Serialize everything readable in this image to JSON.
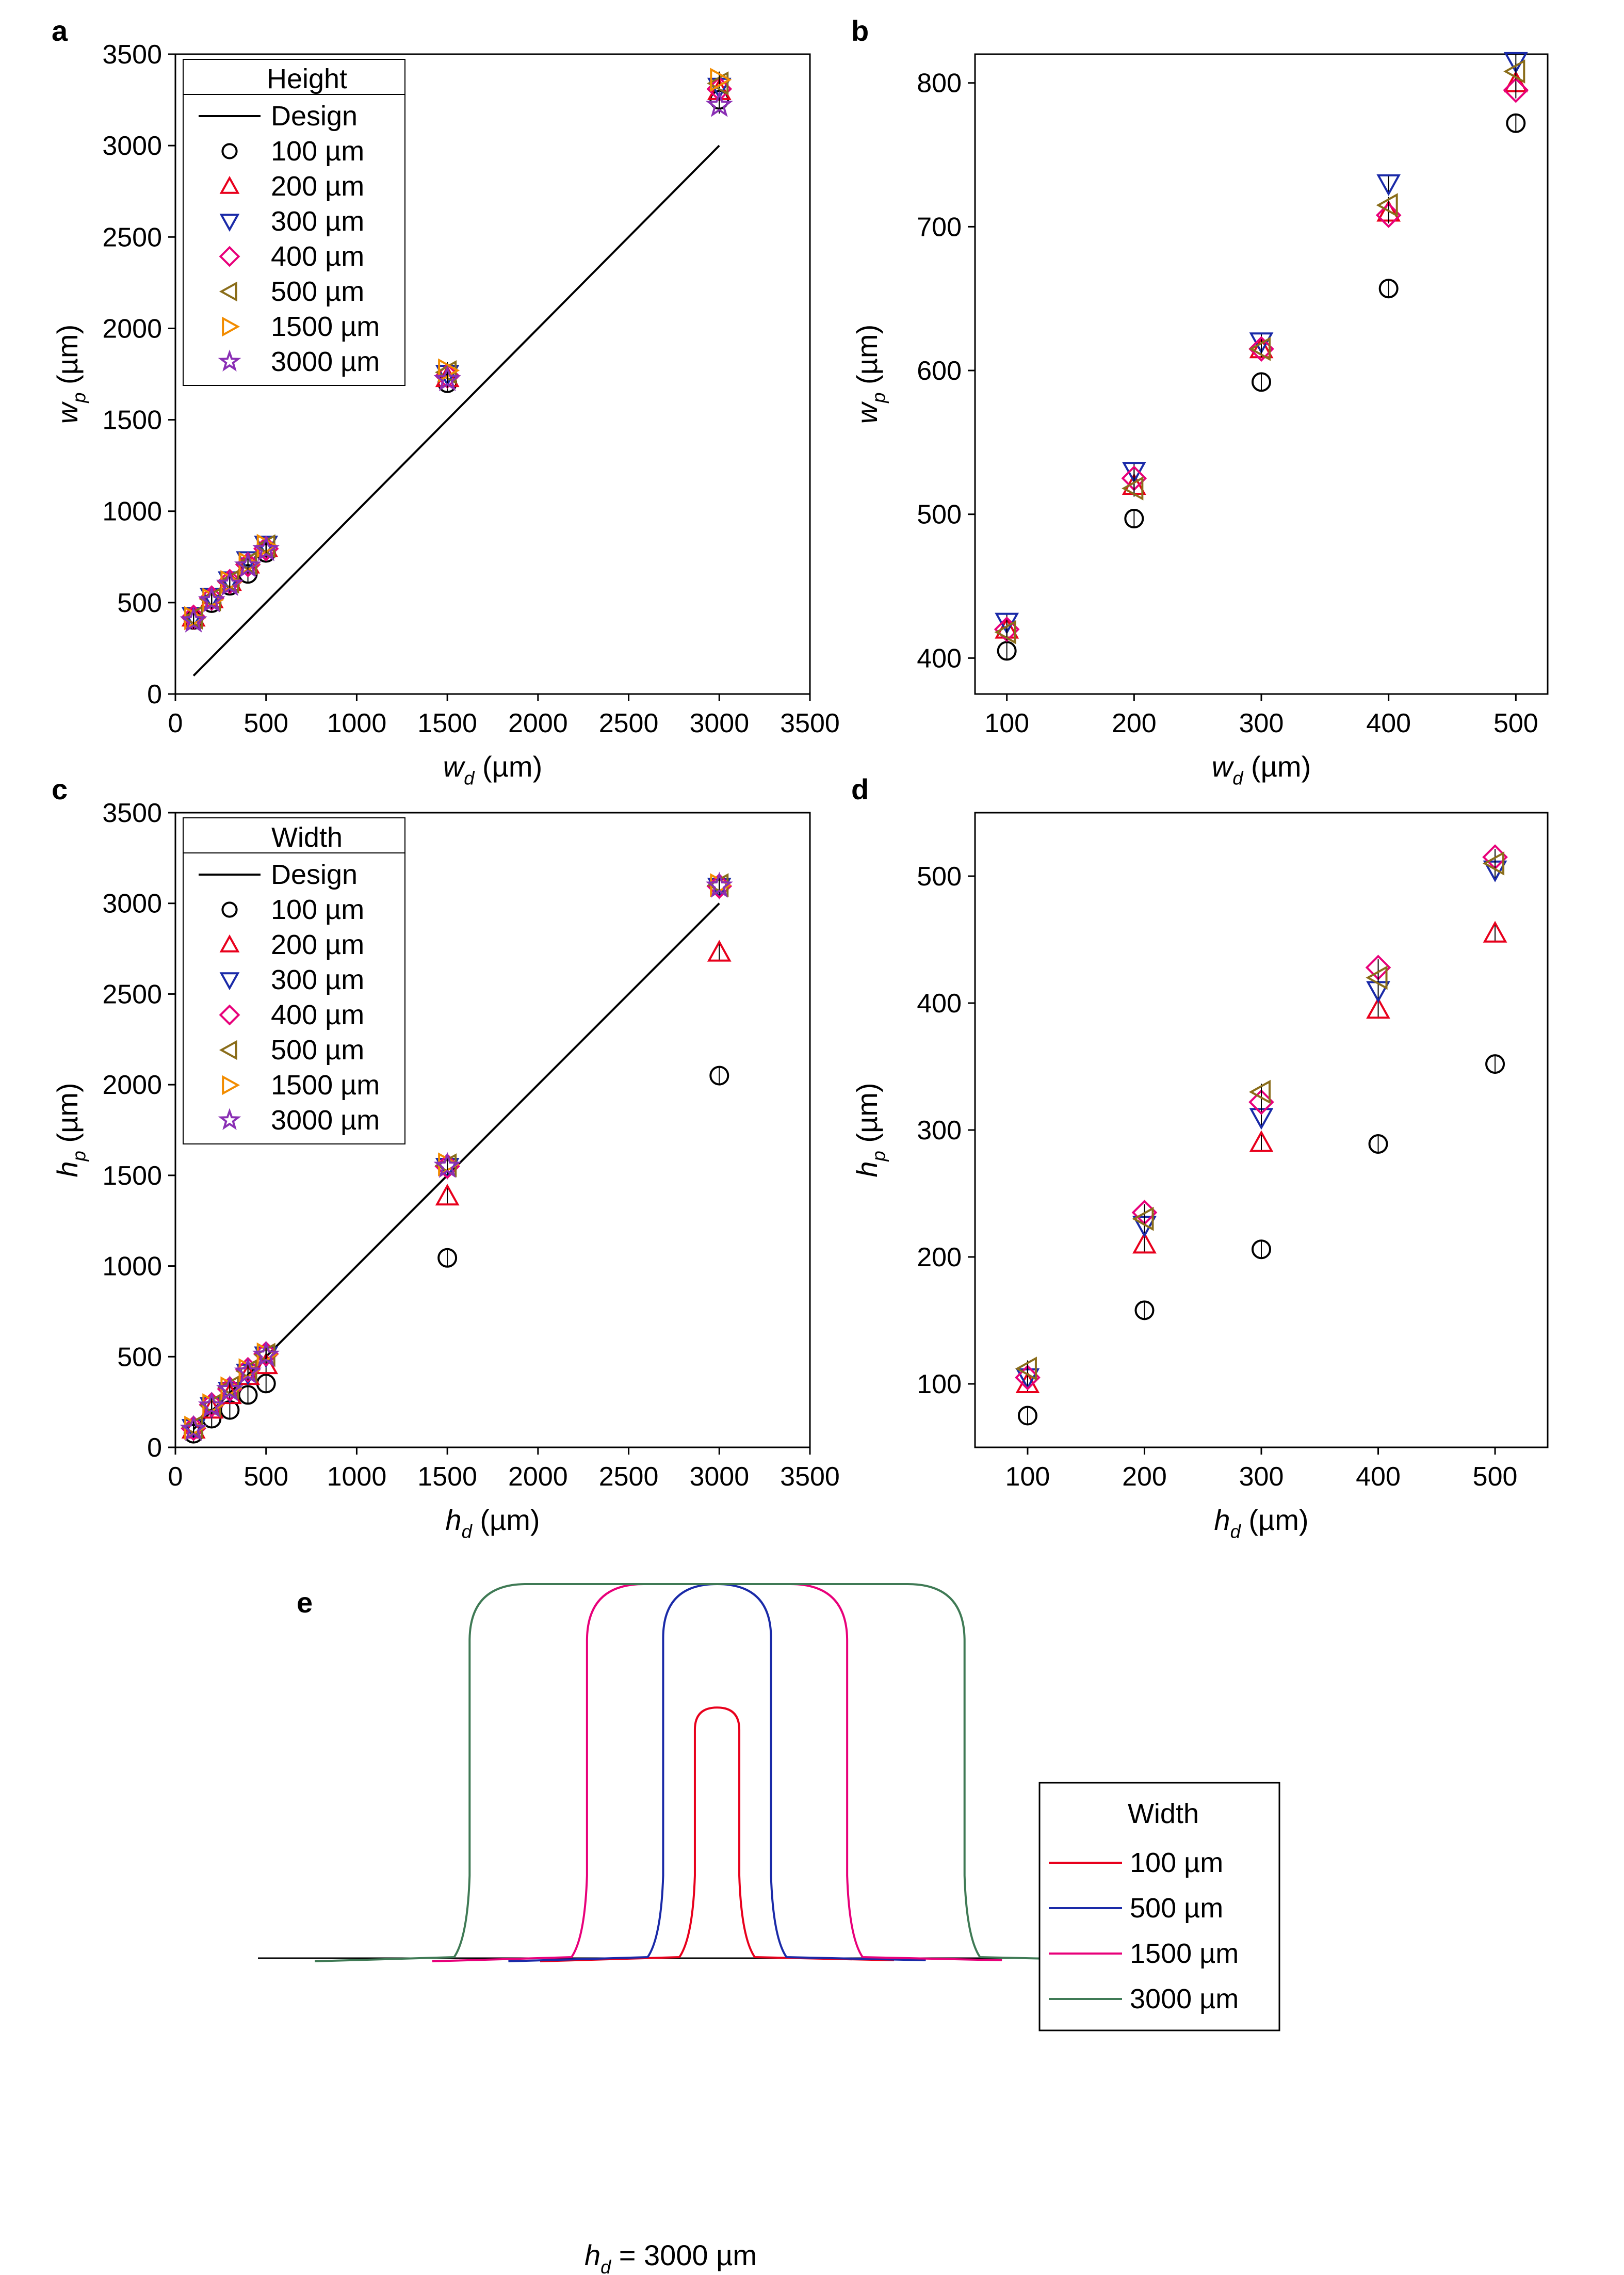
{
  "figure": {
    "panels": [
      {
        "label": "a",
        "ylabel_main": "w",
        "ylabel_sub": "p",
        "xlabel_main": "w",
        "xlabel_sub": "d",
        "unit": "(µm)",
        "legend_title": "Height"
      },
      {
        "label": "b",
        "ylabel_main": "w",
        "ylabel_sub": "p",
        "xlabel_main": "w",
        "xlabel_sub": "d",
        "unit": "(µm)"
      },
      {
        "label": "c",
        "ylabel_main": "h",
        "ylabel_sub": "p",
        "xlabel_main": "h",
        "xlabel_sub": "d",
        "unit": "(µm)",
        "legend_title": "Width"
      },
      {
        "label": "d",
        "ylabel_main": "h",
        "ylabel_sub": "p",
        "xlabel_main": "h",
        "xlabel_sub": "d",
        "unit": "(µm)"
      },
      {
        "label": "e",
        "caption_main": "h",
        "caption_sub": "d",
        "caption_value": " = 3000 µm",
        "legend_title": "Width"
      }
    ],
    "design_label": "Design",
    "series_labels": [
      "100 µm",
      "200 µm",
      "300 µm",
      "400 µm",
      "500 µm",
      "1500 µm",
      "3000 µm"
    ],
    "series_colors": [
      "#000000",
      "#e8001c",
      "#1a2aa8",
      "#e8007a",
      "#8a6d1a",
      "#f28c00",
      "#8a2fb5"
    ],
    "series_markers": [
      "circle",
      "triangle-up",
      "triangle-down",
      "diamond",
      "triangle-left",
      "triangle-right",
      "star"
    ],
    "profile_labels": [
      "100 µm",
      "500 µm",
      "1500 µm",
      "3000 µm"
    ],
    "profile_colors": [
      "#e8001c",
      "#1a2aa8",
      "#e8007a",
      "#3f7a55"
    ]
  },
  "chart_data": [
    {
      "panel": "a",
      "type": "scatter",
      "xlabel": "w_d (µm)",
      "ylabel": "w_p (µm)",
      "xlim": [
        0,
        3500
      ],
      "ylim": [
        0,
        3500
      ],
      "xticks": [
        0,
        500,
        1000,
        1500,
        2000,
        2500,
        3000,
        3500
      ],
      "yticks": [
        0,
        500,
        1000,
        1500,
        2000,
        2500,
        3000,
        3500
      ],
      "x": [
        100,
        200,
        300,
        400,
        500,
        1500,
        3000
      ],
      "design": {
        "x": [
          100,
          3000
        ],
        "y": [
          100,
          3000
        ]
      },
      "series": [
        {
          "name": "100 µm",
          "values": [
            405,
            497,
            592,
            657,
            772,
            1700,
            3250
          ]
        },
        {
          "name": "200 µm",
          "values": [
            420,
            520,
            615,
            710,
            800,
            1730,
            3300
          ]
        },
        {
          "name": "300 µm",
          "values": [
            425,
            530,
            620,
            730,
            815,
            1750,
            3320
          ]
        },
        {
          "name": "400 µm",
          "values": [
            420,
            525,
            615,
            708,
            795,
            1740,
            3310
          ]
        },
        {
          "name": "500 µm",
          "values": [
            418,
            518,
            615,
            715,
            808,
            1760,
            3340
          ]
        },
        {
          "name": "1500 µm",
          "values": [
            415,
            515,
            612,
            712,
            810,
            1770,
            3360
          ]
        },
        {
          "name": "3000 µm",
          "values": [
            400,
            510,
            600,
            700,
            790,
            1720,
            3220
          ]
        }
      ]
    },
    {
      "panel": "b",
      "type": "scatter",
      "xlabel": "w_d (µm)",
      "ylabel": "w_p (µm)",
      "xlim": [
        75,
        525
      ],
      "ylim": [
        375,
        820
      ],
      "xticks": [
        100,
        200,
        300,
        400,
        500
      ],
      "yticks": [
        400,
        500,
        600,
        700,
        800
      ],
      "x": [
        100,
        200,
        300,
        400,
        500
      ],
      "series": [
        {
          "name": "100 µm",
          "values": [
            405,
            497,
            592,
            657,
            772
          ]
        },
        {
          "name": "200 µm",
          "values": [
            420,
            520,
            615,
            710,
            800
          ]
        },
        {
          "name": "300 µm",
          "values": [
            425,
            530,
            620,
            730,
            815
          ]
        },
        {
          "name": "400 µm",
          "values": [
            420,
            525,
            615,
            708,
            795
          ]
        },
        {
          "name": "500 µm",
          "values": [
            418,
            518,
            615,
            715,
            808
          ]
        }
      ]
    },
    {
      "panel": "c",
      "type": "scatter",
      "xlabel": "h_d (µm)",
      "ylabel": "h_p (µm)",
      "xlim": [
        0,
        3500
      ],
      "ylim": [
        0,
        3500
      ],
      "xticks": [
        0,
        500,
        1000,
        1500,
        2000,
        2500,
        3000,
        3500
      ],
      "yticks": [
        0,
        500,
        1000,
        1500,
        2000,
        2500,
        3000,
        3500
      ],
      "x": [
        100,
        200,
        300,
        400,
        500,
        1500,
        3000
      ],
      "design": {
        "x": [
          100,
          3000
        ],
        "y": [
          100,
          3000
        ]
      },
      "series": [
        {
          "name": "100 µm",
          "values": [
            75,
            158,
            206,
            289,
            352,
            1045,
            2050
          ]
        },
        {
          "name": "200 µm",
          "values": [
            100,
            210,
            290,
            395,
            455,
            1385,
            2730
          ]
        },
        {
          "name": "300 µm",
          "values": [
            105,
            225,
            310,
            410,
            505,
            1545,
            3090
          ]
        },
        {
          "name": "400 µm",
          "values": [
            105,
            235,
            322,
            428,
            515,
            1550,
            3095
          ]
        },
        {
          "name": "500 µm",
          "values": [
            112,
            230,
            330,
            420,
            510,
            1555,
            3100
          ]
        },
        {
          "name": "1500 µm",
          "values": [
            108,
            232,
            325,
            425,
            512,
            1560,
            3100
          ]
        },
        {
          "name": "3000 µm",
          "values": [
            100,
            228,
            318,
            415,
            508,
            1550,
            3095
          ]
        }
      ]
    },
    {
      "panel": "d",
      "type": "scatter",
      "xlabel": "h_d (µm)",
      "ylabel": "h_p (µm)",
      "xlim": [
        55,
        545
      ],
      "ylim": [
        50,
        550
      ],
      "xticks": [
        100,
        200,
        300,
        400,
        500
      ],
      "yticks": [
        100,
        200,
        300,
        400,
        500
      ],
      "x": [
        100,
        200,
        300,
        400,
        500
      ],
      "series": [
        {
          "name": "100 µm",
          "values": [
            75,
            158,
            206,
            289,
            352
          ]
        },
        {
          "name": "200 µm",
          "values": [
            100,
            210,
            290,
            395,
            455
          ]
        },
        {
          "name": "300 µm",
          "values": [
            105,
            225,
            310,
            410,
            505
          ]
        },
        {
          "name": "400 µm",
          "values": [
            105,
            235,
            322,
            428,
            515
          ]
        },
        {
          "name": "500 µm",
          "values": [
            112,
            230,
            330,
            420,
            510
          ]
        }
      ]
    },
    {
      "panel": "e",
      "type": "line",
      "description_free": true,
      "baseline_height": 0,
      "series": [
        {
          "name": "100 µm",
          "relative_width": 0.07,
          "relative_height": 0.67,
          "corner": "round"
        },
        {
          "name": "500 µm",
          "relative_width": 0.17,
          "relative_height": 1.0,
          "corner": "round"
        },
        {
          "name": "1500 µm",
          "relative_width": 0.41,
          "relative_height": 1.0,
          "corner": "rounded-shoulder"
        },
        {
          "name": "3000 µm",
          "relative_width": 0.78,
          "relative_height": 1.0,
          "corner": "rounded-shoulder"
        }
      ]
    }
  ]
}
